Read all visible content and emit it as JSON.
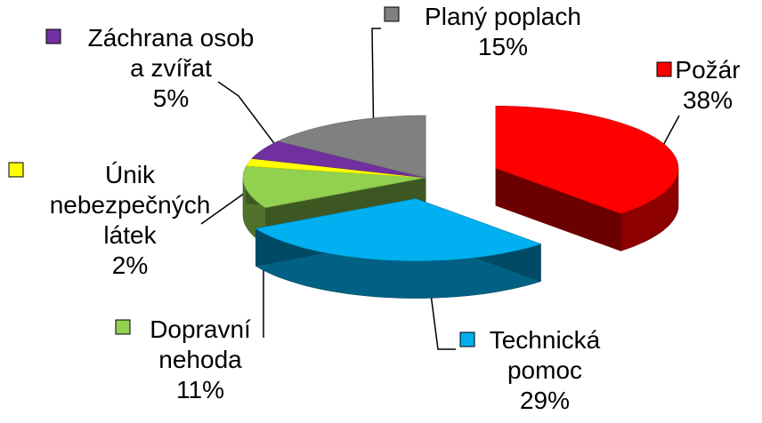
{
  "chart_data": {
    "type": "pie",
    "title": "",
    "categories": [
      "Požár",
      "Technická pomoc",
      "Dopravní nehoda",
      "Únik nebezpečných látek",
      "Záchrana osob a zvířat",
      "Planý poplach"
    ],
    "values": [
      38,
      29,
      11,
      2,
      5,
      15
    ],
    "unit": "%",
    "colors": [
      "#ff0000",
      "#00b0f0",
      "#92d050",
      "#ffff00",
      "#7030a0",
      "#808080"
    ],
    "legend": "inline legend keys next to each label",
    "style": "3d exploded pie",
    "labels": [
      {
        "lines": [
          "Požár"
        ],
        "pct": "38%"
      },
      {
        "lines": [
          "Technická",
          "pomoc"
        ],
        "pct": "29%"
      },
      {
        "lines": [
          "Dopravní",
          "nehoda"
        ],
        "pct": "11%"
      },
      {
        "lines": [
          "Únik",
          "nebezpečných",
          "látek"
        ],
        "pct": "2%"
      },
      {
        "lines": [
          "Záchrana osob",
          "a zvířat"
        ],
        "pct": "5%"
      },
      {
        "lines": [
          "Planý poplach"
        ],
        "pct": "15%"
      }
    ]
  }
}
